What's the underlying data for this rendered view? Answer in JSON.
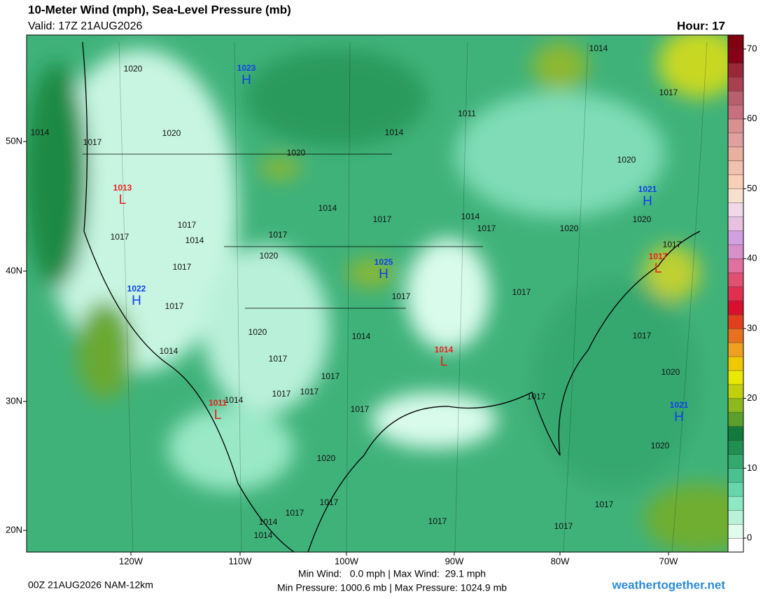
{
  "header": {
    "title": "10-Meter Wind (mph), Sea-Level Pressure (mb)",
    "valid": "Valid: 17Z 21AUG2026",
    "hour": "Hour: 17"
  },
  "map": {
    "lat_labels": [
      "50N",
      "40N",
      "30N",
      "20N"
    ],
    "lon_labels": [
      "120W",
      "110W",
      "100W",
      "90W",
      "80W",
      "70W"
    ],
    "isobar_labels": [
      1020,
      1014,
      1017,
      1020,
      1014,
      1017,
      1011,
      1014,
      1020,
      1020,
      1017,
      1017,
      1014,
      1014,
      1017,
      1017,
      1014,
      1017,
      1020,
      1020,
      1017,
      1020,
      1017,
      1017,
      1017,
      1017,
      1020,
      1014,
      1017,
      1014,
      1017,
      1017,
      1020,
      1017,
      1017,
      1014,
      1017,
      1017,
      1020,
      1020,
      1017,
      1017,
      1014,
      1014,
      1017,
      1017,
      1017
    ],
    "centers": [
      {
        "letter": "H",
        "value": 1023
      },
      {
        "letter": "H",
        "value": 1021
      },
      {
        "letter": "L",
        "value": 1013
      },
      {
        "letter": "L",
        "value": 1017
      },
      {
        "letter": "H",
        "value": 1025
      },
      {
        "letter": "H",
        "value": 1022
      },
      {
        "letter": "L",
        "value": 1014
      },
      {
        "letter": "L",
        "value": 1011
      },
      {
        "letter": "H",
        "value": 1021
      }
    ]
  },
  "colorbar": {
    "lim": [
      -2,
      72
    ],
    "ticks": [
      0,
      10,
      20,
      30,
      40,
      50,
      60,
      70
    ],
    "colors": [
      "#ffffff",
      "#e2fbef",
      "#b8f2d8",
      "#8de8c4",
      "#67d6ab",
      "#4bc190",
      "#35a870",
      "#228f52",
      "#127a3b",
      "#5c9f2c",
      "#8db81e",
      "#c0d00e",
      "#e8e800",
      "#f0c800",
      "#f0a020",
      "#e87020",
      "#e04020",
      "#d81030",
      "#e03050",
      "#e05070",
      "#e070a0",
      "#d890c8",
      "#d0a0e0",
      "#e8c0e0",
      "#f0d8e8",
      "#f8e0d0",
      "#f8d0b8",
      "#f0c0b0",
      "#e8b0a0",
      "#e0a0a0",
      "#d89090",
      "#c87080",
      "#b86070",
      "#a84050",
      "#982838",
      "#880018",
      "#800010"
    ]
  },
  "footer": {
    "run": "00Z 21AUG2026 NAM-12km",
    "wind": "Min Wind:   0.0 mph | Max Wind:  29.1 mph",
    "pressure": "Min Pressure: 1000.6 mb | Max Pressure: 1024.9 mb",
    "site": "weathertogether.net"
  }
}
